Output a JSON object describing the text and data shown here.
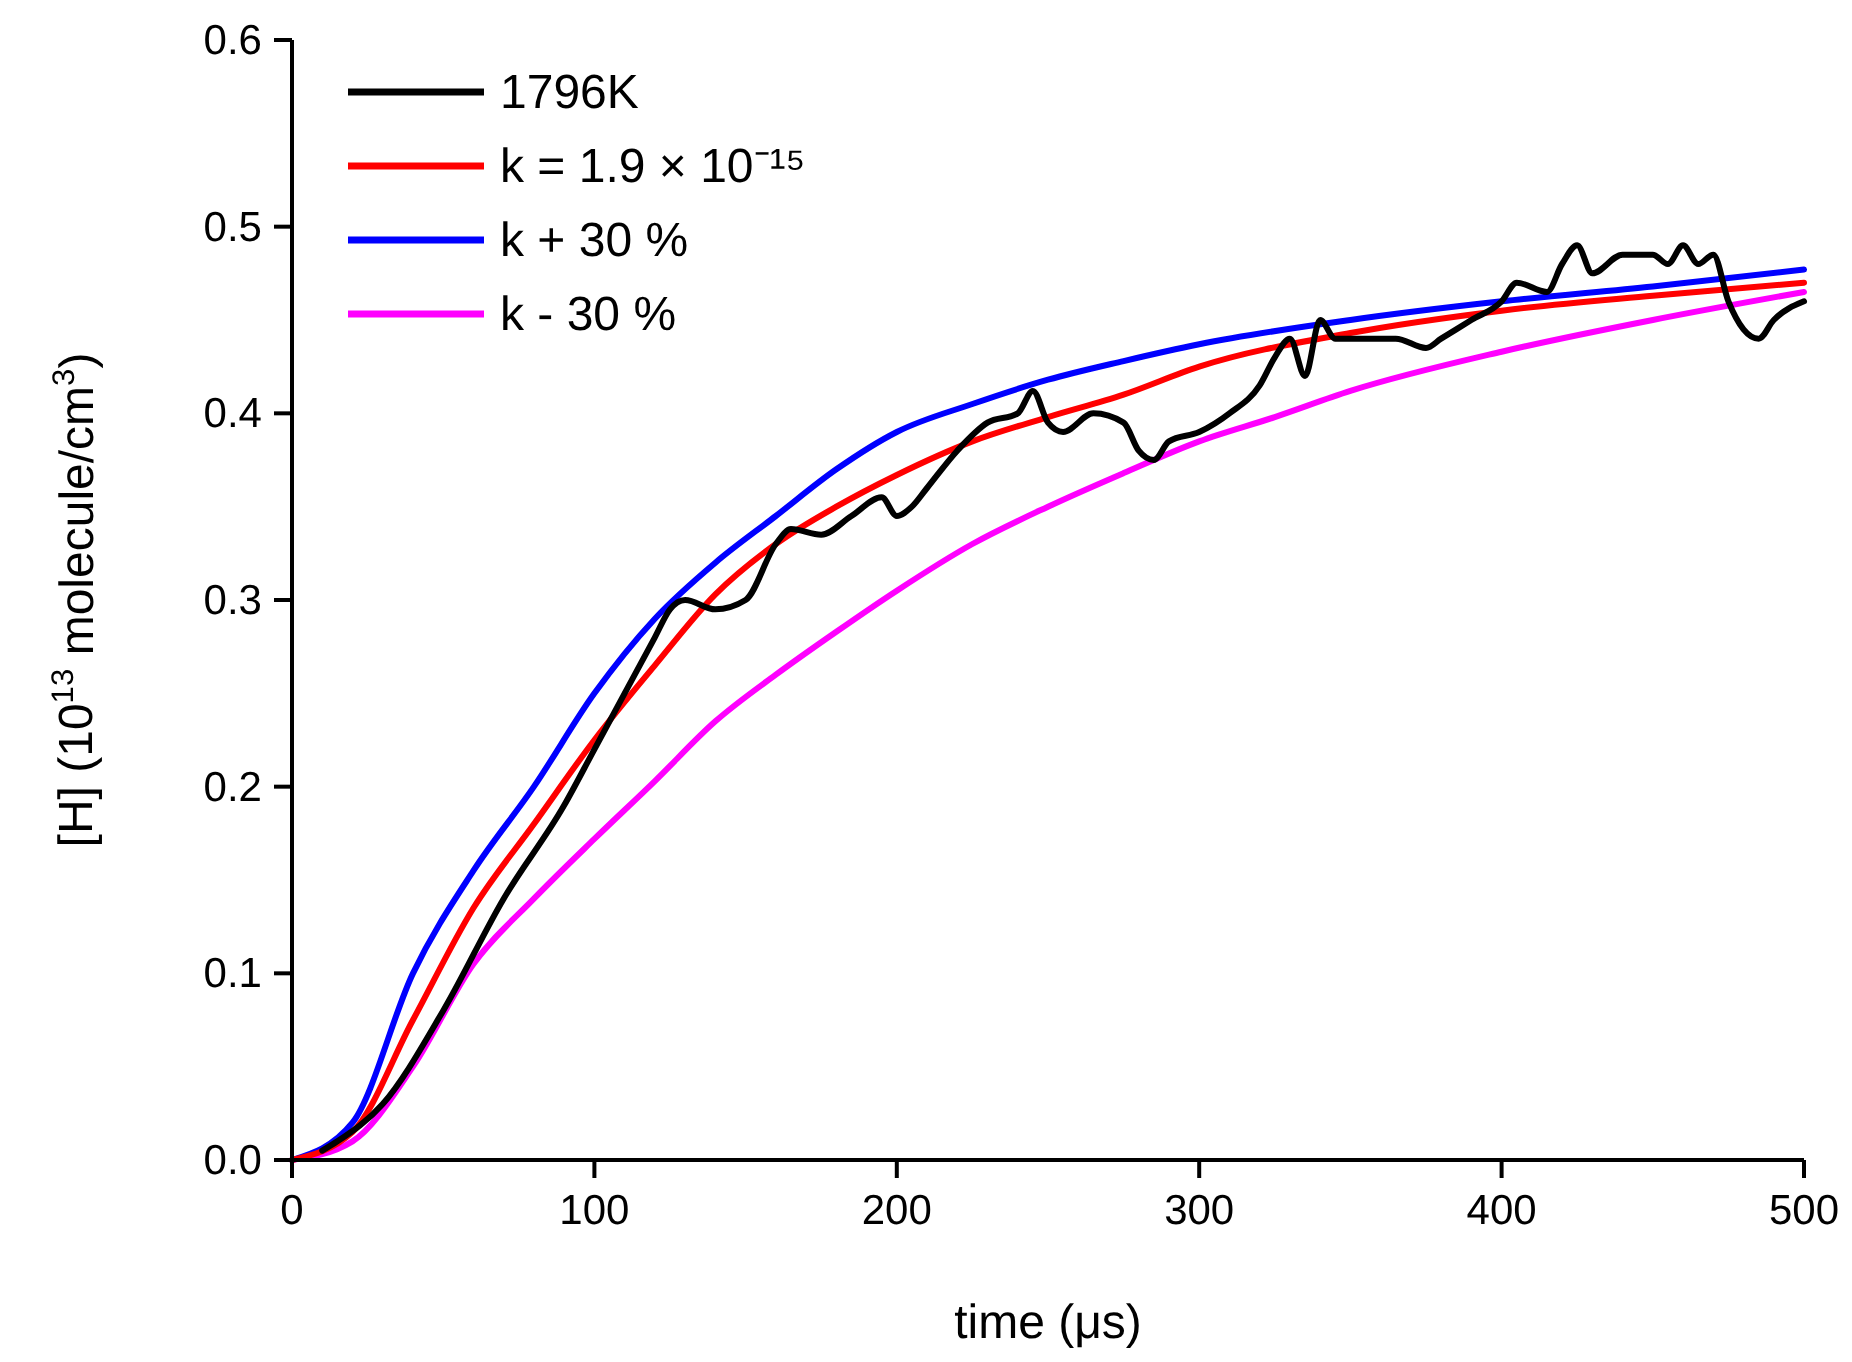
{
  "chart_data": {
    "type": "line",
    "xlabel": "time (μs)",
    "ylabel": "[H] (10$^{13}$ molecule/cm$^{3}$)",
    "xlim": [
      0,
      500
    ],
    "ylim": [
      0,
      0.6
    ],
    "xticks": [
      0,
      100,
      200,
      300,
      400,
      500
    ],
    "yticks": [
      {
        "value": 0,
        "label": "0.0"
      },
      0.1,
      0.2,
      0.3,
      0.4,
      0.5,
      0.6
    ],
    "grid": false,
    "legend": "top left",
    "line_style": "solid",
    "marker": "none",
    "series": [
      {
        "name": "1796K",
        "color": "#000000",
        "x": [
          10,
          15,
          30,
          50,
          70,
          90,
          100,
          110,
          120,
          125,
          130,
          140,
          150,
          160,
          165,
          175,
          185,
          195,
          200,
          205,
          210,
          220,
          230,
          240,
          245,
          250,
          255,
          265,
          275,
          280,
          285,
          290,
          300,
          310,
          320,
          325,
          330,
          335,
          340,
          345,
          355,
          365,
          375,
          380,
          390,
          400,
          405,
          415,
          420,
          425,
          430,
          440,
          450,
          455,
          460,
          465,
          470,
          475,
          480,
          485,
          490,
          500
        ],
        "values": [
          0.005,
          0.01,
          0.03,
          0.08,
          0.14,
          0.19,
          0.22,
          0.25,
          0.28,
          0.295,
          0.3,
          0.295,
          0.3,
          0.33,
          0.338,
          0.335,
          0.345,
          0.355,
          0.345,
          0.35,
          0.36,
          0.38,
          0.395,
          0.4,
          0.412,
          0.395,
          0.39,
          0.4,
          0.395,
          0.38,
          0.375,
          0.385,
          0.39,
          0.4,
          0.415,
          0.43,
          0.44,
          0.42,
          0.45,
          0.44,
          0.44,
          0.44,
          0.435,
          0.44,
          0.45,
          0.46,
          0.47,
          0.465,
          0.48,
          0.49,
          0.475,
          0.485,
          0.485,
          0.48,
          0.49,
          0.48,
          0.485,
          0.46,
          0.445,
          0.44,
          0.45,
          0.46
        ]
      },
      {
        "name": "k = 1.9 × 10⁻¹⁵",
        "color": "#ff0000",
        "x": [
          0,
          20,
          40,
          60,
          80,
          100,
          120,
          140,
          160,
          180,
          200,
          225,
          250,
          275,
          300,
          350,
          400,
          450,
          500
        ],
        "values": [
          0,
          0.015,
          0.075,
          0.135,
          0.18,
          0.225,
          0.265,
          0.303,
          0.33,
          0.35,
          0.367,
          0.385,
          0.398,
          0.41,
          0.425,
          0.443,
          0.455,
          0.463,
          0.47
        ]
      },
      {
        "name": "k + 30 %",
        "color": "#0000ff",
        "x": [
          0,
          20,
          40,
          60,
          80,
          100,
          120,
          140,
          160,
          180,
          200,
          225,
          250,
          275,
          300,
          350,
          400,
          450,
          500
        ],
        "values": [
          0,
          0.02,
          0.1,
          0.155,
          0.2,
          0.25,
          0.29,
          0.32,
          0.345,
          0.37,
          0.39,
          0.405,
          0.418,
          0.428,
          0.437,
          0.45,
          0.46,
          0.468,
          0.477
        ]
      },
      {
        "name": "k - 30 %",
        "color": "#ff00ff",
        "x": [
          0,
          20,
          40,
          60,
          80,
          100,
          120,
          140,
          160,
          180,
          200,
          225,
          250,
          275,
          300,
          325,
          350,
          400,
          450,
          500
        ],
        "values": [
          0,
          0.01,
          0.05,
          0.105,
          0.14,
          0.172,
          0.203,
          0.235,
          0.26,
          0.283,
          0.305,
          0.33,
          0.35,
          0.368,
          0.385,
          0.398,
          0.412,
          0.433,
          0.45,
          0.465
        ]
      }
    ]
  }
}
